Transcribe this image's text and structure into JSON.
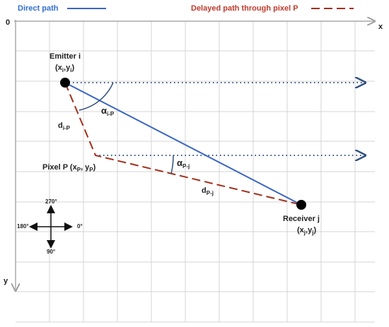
{
  "legend": {
    "direct_path": "Direct path",
    "delayed_path": "Delayed path through pixel P"
  },
  "axes": {
    "origin": "0",
    "x": "x",
    "y": "y"
  },
  "emitter": {
    "name": "Emitter i",
    "coord": [
      "(x",
      "i",
      ",y",
      "i",
      ")"
    ]
  },
  "pixel": {
    "label": [
      "Pixel P (x",
      "P",
      ", y",
      "P",
      ")"
    ]
  },
  "receiver": {
    "name": "Receiver j",
    "coord": [
      "(x",
      "j",
      ",y",
      "j",
      ")"
    ]
  },
  "distances": [
    [
      "d",
      "i-P"
    ],
    [
      "d",
      "P-j"
    ]
  ],
  "angles": [
    [
      "α",
      "i-P"
    ],
    [
      "α",
      "P-j"
    ]
  ],
  "compass": {
    "up": "270°",
    "left": "180°",
    "right": "0°",
    "down": "90°"
  }
}
